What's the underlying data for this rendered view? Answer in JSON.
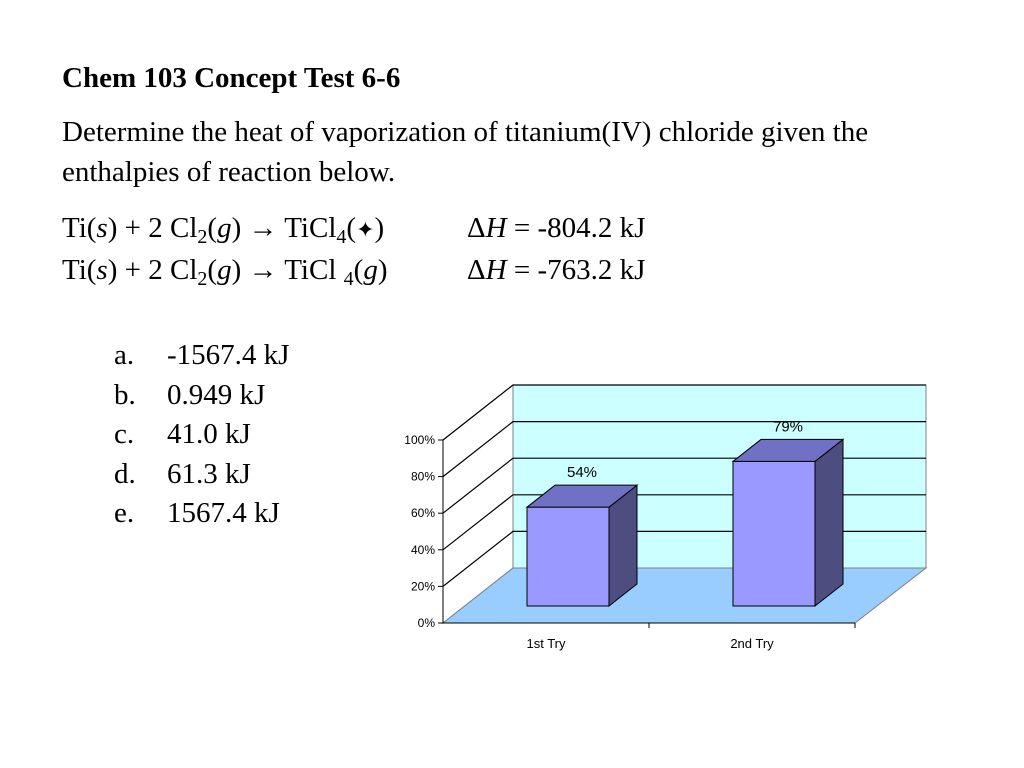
{
  "slide": {
    "title": "Chem 103 Concept Test 6-6",
    "question": "Determine the heat of vaporization of titanium(IV) chloride given the enthalpies of reaction below."
  },
  "equations": [
    {
      "ti": "Ti(",
      "ti_phase": "s",
      "ti_close": ")",
      "plus": " + 2 Cl",
      "cl_sub": "2",
      "cl_open": "(",
      "cl_phase": "g",
      "cl_close": ")",
      "arrow": " → TiCl",
      "prod_sub": "4",
      "prod_open": "(",
      "prod_phase": "✦",
      "prod_close": ")",
      "dh_symbol": "Δ",
      "dh_var": "H",
      "dh_value": " = -804.2 kJ"
    },
    {
      "ti": "Ti(",
      "ti_phase": "s",
      "ti_close": ")",
      "plus": " + 2 Cl",
      "cl_sub": "2",
      "cl_open": "(",
      "cl_phase": "g",
      "cl_close": ")",
      "arrow": " → TiCl ",
      "prod_sub": "4",
      "prod_open": "(",
      "prod_phase": "g",
      "prod_close": ")",
      "dh_symbol": "Δ",
      "dh_var": "H",
      "dh_value": " = -763.2 kJ"
    }
  ],
  "answers": [
    {
      "letter": "a.",
      "text": "-1567.4 kJ"
    },
    {
      "letter": "b.",
      "text": "0.949 kJ"
    },
    {
      "letter": "c.",
      "text": "41.0 kJ"
    },
    {
      "letter": "d.",
      "text": "61.3 kJ"
    },
    {
      "letter": "e.",
      "text": "1567.4 kJ"
    }
  ],
  "chart_data": {
    "type": "bar",
    "categories": [
      "1st Try",
      "2nd Try"
    ],
    "values": [
      54,
      79
    ],
    "data_labels": [
      "54%",
      "79%"
    ],
    "yticks": [
      "0%",
      "20%",
      "40%",
      "60%",
      "80%",
      "100%"
    ],
    "ylim": [
      0,
      100
    ],
    "style": "3d",
    "grid": true,
    "legend": "none",
    "colors": {
      "bar_front": "#9999ff",
      "bar_side": "#4d4d80",
      "bar_top": "#7070c4",
      "back_wall": "#ccffff",
      "floor": "#99ccff"
    }
  }
}
